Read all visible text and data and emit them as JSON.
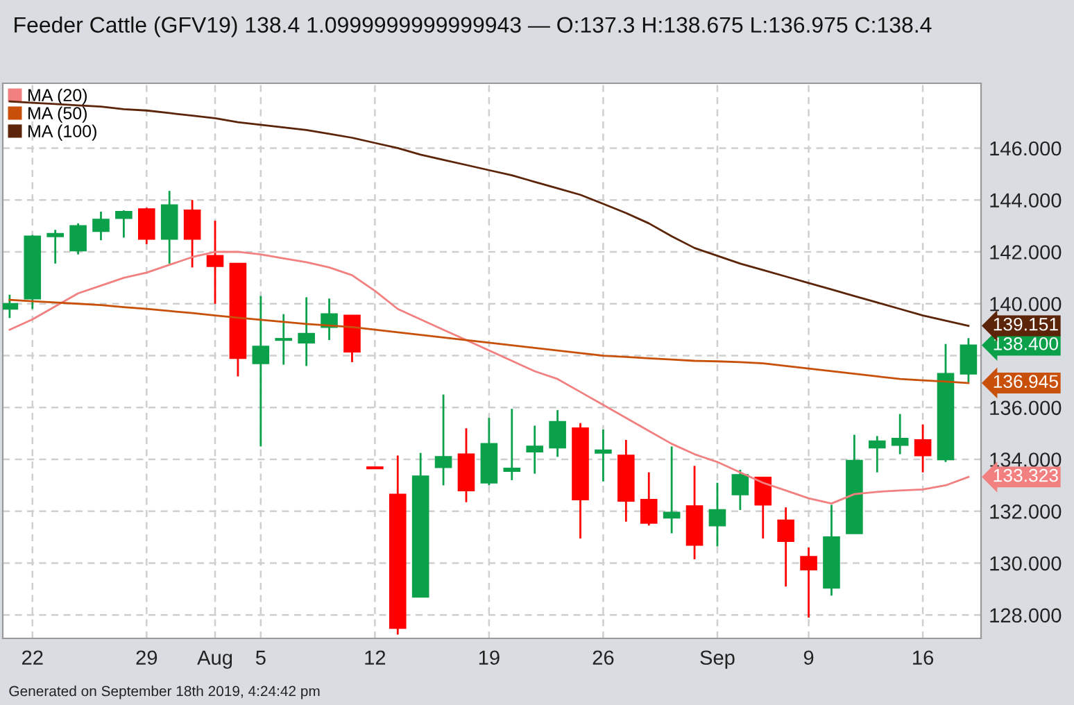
{
  "chart_data": {
    "type": "candlestick",
    "title": "Feeder Cattle (GFV19) 138.4 1.0999999999999943 — O:137.3 H:138.675 L:136.975 C:138.4",
    "categories": [
      null,
      "22",
      null,
      null,
      null,
      null,
      "29",
      null,
      null,
      "Aug",
      null,
      "5",
      null,
      null,
      null,
      null,
      "12",
      null,
      null,
      null,
      null,
      "19",
      null,
      null,
      null,
      null,
      "26",
      null,
      null,
      null,
      null,
      "Sep",
      null,
      null,
      null,
      "9",
      null,
      null,
      null,
      null,
      "16",
      null,
      null
    ],
    "ohlc": [
      [
        139.8,
        140.35,
        139.45,
        140.0
      ],
      [
        140.2,
        142.65,
        139.8,
        142.6
      ],
      [
        142.6,
        142.85,
        141.55,
        142.7
      ],
      [
        142.05,
        143.1,
        141.9,
        143.0
      ],
      [
        142.8,
        143.55,
        142.45,
        143.25
      ],
      [
        143.3,
        143.6,
        142.55,
        143.55
      ],
      [
        143.65,
        143.7,
        142.3,
        142.5
      ],
      [
        142.5,
        144.35,
        141.55,
        143.8
      ],
      [
        143.6,
        144.0,
        141.4,
        142.5
      ],
      [
        141.85,
        143.2,
        140.0,
        141.45
      ],
      [
        141.55,
        141.55,
        137.2,
        137.9
      ],
      [
        137.7,
        140.3,
        134.5,
        138.35
      ],
      [
        138.6,
        139.6,
        137.65,
        138.65
      ],
      [
        138.5,
        140.25,
        137.6,
        138.85
      ],
      [
        139.1,
        140.2,
        138.6,
        139.6
      ],
      [
        139.55,
        139.55,
        137.75,
        138.15
      ],
      [
        133.7,
        133.7,
        133.65,
        133.65
      ],
      [
        132.65,
        134.15,
        127.25,
        127.5
      ],
      [
        128.7,
        134.25,
        128.7,
        133.35
      ],
      [
        133.7,
        136.5,
        133.0,
        134.1
      ],
      [
        134.2,
        135.2,
        132.35,
        132.8
      ],
      [
        133.1,
        135.6,
        133.0,
        134.6
      ],
      [
        133.55,
        135.95,
        133.2,
        133.65
      ],
      [
        134.3,
        135.3,
        133.45,
        134.5
      ],
      [
        134.45,
        135.9,
        134.1,
        135.45
      ],
      [
        135.2,
        135.4,
        130.95,
        132.45
      ],
      [
        134.25,
        135.15,
        133.15,
        134.35
      ],
      [
        134.15,
        134.75,
        131.6,
        132.4
      ],
      [
        132.45,
        133.5,
        131.45,
        131.55
      ],
      [
        131.75,
        134.5,
        131.15,
        131.95
      ],
      [
        132.2,
        133.75,
        130.15,
        130.7
      ],
      [
        131.45,
        133.1,
        130.65,
        132.05
      ],
      [
        132.65,
        133.6,
        132.05,
        133.4
      ],
      [
        133.3,
        133.3,
        130.95,
        132.25
      ],
      [
        131.65,
        132.15,
        129.1,
        130.85
      ],
      [
        130.25,
        130.6,
        127.9,
        129.75
      ],
      [
        129.05,
        132.25,
        128.75,
        131.0
      ],
      [
        131.15,
        134.95,
        131.15,
        133.95
      ],
      [
        134.45,
        134.9,
        133.5,
        134.7
      ],
      [
        134.55,
        135.75,
        134.2,
        134.8
      ],
      [
        134.75,
        135.35,
        133.5,
        134.15
      ],
      [
        134.0,
        138.45,
        133.9,
        137.3
      ],
      [
        137.3,
        138.675,
        136.975,
        138.4
      ]
    ],
    "colors": [
      "#0aa14a",
      "#0aa14a",
      "#0aa14a",
      "#0aa14a",
      "#0aa14a",
      "#0aa14a",
      "#ff0000",
      "#0aa14a",
      "#ff0000",
      "#ff0000",
      "#ff0000",
      "#0aa14a",
      "#0aa14a",
      "#0aa14a",
      "#0aa14a",
      "#ff0000",
      "#ff0000",
      "#ff0000",
      "#0aa14a",
      "#0aa14a",
      "#ff0000",
      "#0aa14a",
      "#0aa14a",
      "#0aa14a",
      "#0aa14a",
      "#ff0000",
      "#0aa14a",
      "#ff0000",
      "#ff0000",
      "#0aa14a",
      "#ff0000",
      "#0aa14a",
      "#0aa14a",
      "#ff0000",
      "#ff0000",
      "#ff0000",
      "#0aa14a",
      "#0aa14a",
      "#0aa14a",
      "#0aa14a",
      "#ff0000",
      "#0aa14a",
      "#0aa14a"
    ],
    "series": [
      {
        "type": "line",
        "name": "MA (20)",
        "color": "#f28080",
        "values": [
          139.0,
          139.4,
          139.9,
          140.4,
          140.7,
          141.0,
          141.2,
          141.5,
          141.8,
          142.0,
          142.0,
          141.9,
          141.75,
          141.6,
          141.4,
          141.1,
          140.5,
          139.8,
          139.4,
          139.0,
          138.6,
          138.2,
          137.8,
          137.4,
          137.1,
          136.6,
          136.1,
          135.6,
          135.1,
          134.6,
          134.2,
          133.9,
          133.5,
          133.1,
          132.8,
          132.5,
          132.3,
          132.66,
          132.75,
          132.8,
          132.84,
          133.0,
          133.323
        ],
        "value_labels": [
          null,
          null,
          null,
          null,
          null,
          null,
          null,
          null,
          null,
          null,
          null,
          null,
          null,
          null,
          null,
          null,
          null,
          null,
          null,
          null,
          null,
          null,
          null,
          null,
          null,
          null,
          null,
          null,
          null,
          null,
          null,
          null,
          null,
          null,
          null,
          null,
          null,
          null,
          null,
          null,
          null,
          null,
          "133.323"
        ]
      },
      {
        "type": "line",
        "name": "MA (50)",
        "color": "#c8500a",
        "values": [
          140.15,
          140.1,
          140.05,
          140.0,
          139.95,
          139.87,
          139.8,
          139.72,
          139.64,
          139.55,
          139.46,
          139.38,
          139.3,
          139.22,
          139.16,
          139.1,
          139.0,
          138.9,
          138.8,
          138.7,
          138.6,
          138.5,
          138.4,
          138.3,
          138.2,
          138.1,
          138.0,
          137.95,
          137.9,
          137.85,
          137.8,
          137.78,
          137.75,
          137.7,
          137.6,
          137.5,
          137.4,
          137.3,
          137.2,
          137.1,
          137.05,
          137.0,
          136.945
        ],
        "value_labels": [
          null,
          null,
          null,
          null,
          null,
          null,
          null,
          null,
          null,
          null,
          null,
          null,
          null,
          null,
          null,
          null,
          null,
          null,
          null,
          null,
          null,
          null,
          null,
          null,
          null,
          null,
          null,
          null,
          null,
          null,
          null,
          null,
          null,
          null,
          null,
          null,
          null,
          null,
          null,
          null,
          null,
          null,
          "136.945"
        ]
      },
      {
        "type": "line",
        "name": "MA (100)",
        "color": "#5c2408",
        "values": [
          147.8,
          147.75,
          147.7,
          147.65,
          147.6,
          147.5,
          147.45,
          147.35,
          147.25,
          147.15,
          147.0,
          146.9,
          146.8,
          146.7,
          146.55,
          146.4,
          146.2,
          146.0,
          145.75,
          145.55,
          145.35,
          145.15,
          144.95,
          144.7,
          144.45,
          144.2,
          143.85,
          143.5,
          143.1,
          142.6,
          142.15,
          141.85,
          141.55,
          141.3,
          141.05,
          140.8,
          140.55,
          140.3,
          140.05,
          139.8,
          139.55,
          139.35,
          139.151
        ],
        "value_labels": [
          null,
          null,
          null,
          null,
          null,
          null,
          null,
          null,
          null,
          null,
          null,
          null,
          null,
          null,
          null,
          null,
          null,
          null,
          null,
          null,
          null,
          null,
          null,
          null,
          null,
          null,
          null,
          null,
          null,
          null,
          null,
          null,
          null,
          null,
          null,
          null,
          null,
          null,
          null,
          null,
          null,
          null,
          "139.151"
        ]
      }
    ],
    "ylim": [
      127.1,
      148.5
    ],
    "yticks": [
      {
        "value": 128,
        "label": "128.000"
      },
      {
        "value": 130,
        "label": "130.000"
      },
      {
        "value": 132,
        "label": "132.000"
      },
      {
        "value": 134,
        "label": "134.000"
      },
      {
        "value": 136,
        "label": "136.000"
      },
      {
        "value": 138,
        "label": null
      },
      {
        "value": 140,
        "label": "140.000"
      },
      {
        "value": 142,
        "label": "142.000"
      },
      {
        "value": 144,
        "label": "144.000"
      },
      {
        "value": 146,
        "label": "146.000"
      }
    ],
    "grid": true,
    "legend": "top left",
    "value_labels": [
      null,
      null,
      null,
      null,
      null,
      null,
      null,
      null,
      null,
      null,
      null,
      null,
      null,
      null,
      null,
      null,
      null,
      null,
      null,
      null,
      null,
      null,
      null,
      null,
      null,
      null,
      null,
      null,
      null,
      null,
      null,
      null,
      null,
      null,
      null,
      null,
      null,
      null,
      null,
      null,
      null,
      null,
      "138.400"
    ],
    "annotations": [
      "Generated on September 18th 2019, 4:24:42 pm"
    ]
  }
}
